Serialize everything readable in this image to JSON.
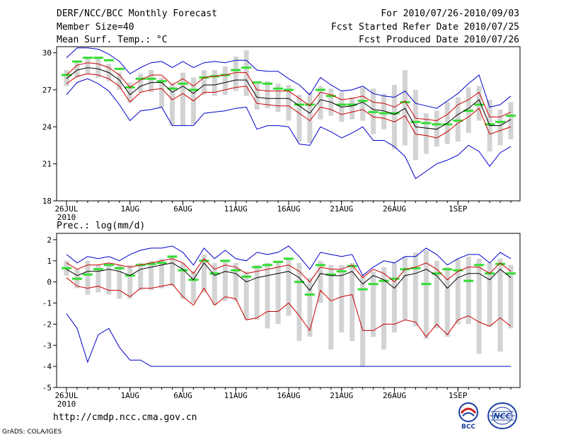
{
  "header": {
    "title": "DERF/NCC/BCC Monthly Forecast",
    "member_size": "Member Size=40",
    "variable": "Mean Surf. Temp.: °C",
    "period": "For 2010/07/26-2010/09/03",
    "start_date": "Fcst Started Refer Date 2010/07/25",
    "produced_date": "Fcst Produced Date 2010/07/26"
  },
  "footer": {
    "url": "http://cmdp.ncc.cma.gov.cn",
    "grads": "GrADS: COLA/IGES",
    "logos": [
      "BCC",
      "NCC"
    ]
  },
  "colors": {
    "ensemble_mean": "#000000",
    "std_envelope": "#cc0000",
    "minmax_envelope": "#0000cc",
    "member_range": "#d3d3d3",
    "climatology": "#33dd33"
  },
  "chart_data": [
    {
      "type": "line",
      "title": "Mean Surf. Temp.: °C",
      "ylabel": "°C",
      "ylim": [
        18,
        30.5
      ],
      "yticks": [
        18,
        21,
        24,
        27,
        30
      ],
      "x_days": 40,
      "xticks": [
        {
          "day": 0,
          "label": "26JUL"
        },
        {
          "day": 6,
          "label": "1AUG"
        },
        {
          "day": 11,
          "label": "6AUG"
        },
        {
          "day": 16,
          "label": "11AUG"
        },
        {
          "day": 21,
          "label": "16AUG"
        },
        {
          "day": 26,
          "label": "21AUG"
        },
        {
          "day": 31,
          "label": "26AUG"
        },
        {
          "day": 37,
          "label": "1SEP"
        }
      ],
      "year_label": "2010",
      "series": [
        {
          "name": "Ensemble mean",
          "values": [
            27.9,
            28.6,
            28.8,
            28.7,
            28.4,
            27.8,
            26.6,
            27.3,
            27.6,
            27.6,
            26.8,
            27.3,
            26.7,
            27.4,
            27.4,
            27.6,
            27.8,
            27.8,
            26.4,
            26.3,
            26.3,
            26.3,
            25.7,
            25.1,
            26.2,
            26.0,
            25.6,
            25.7,
            26.0,
            25.4,
            25.3,
            25.0,
            25.5,
            24.0,
            23.9,
            23.8,
            24.3,
            25.0,
            25.5,
            26.2,
            24.1,
            24.1,
            24.6
          ]
        },
        {
          "name": "Mean + std",
          "values": [
            28.2,
            29.0,
            29.2,
            29.1,
            28.8,
            28.2,
            27.2,
            27.8,
            28.2,
            28.2,
            27.4,
            27.9,
            27.3,
            28.0,
            28.1,
            28.2,
            28.4,
            28.4,
            27.0,
            26.9,
            26.9,
            26.9,
            26.3,
            25.7,
            26.8,
            26.6,
            26.2,
            26.3,
            26.5,
            26.0,
            25.9,
            25.6,
            26.1,
            24.7,
            24.6,
            24.5,
            25.0,
            25.8,
            26.2,
            26.8,
            24.8,
            24.8,
            25.2
          ]
        },
        {
          "name": "Mean - std",
          "values": [
            27.5,
            28.1,
            28.3,
            28.2,
            27.9,
            27.3,
            26.0,
            26.8,
            27.0,
            27.1,
            26.2,
            26.7,
            26.1,
            26.8,
            26.8,
            27.0,
            27.2,
            27.3,
            25.9,
            25.8,
            25.7,
            25.7,
            25.1,
            24.5,
            25.6,
            25.4,
            25.0,
            25.2,
            25.4,
            24.8,
            24.7,
            24.4,
            24.9,
            23.4,
            23.3,
            23.1,
            23.6,
            24.3,
            24.8,
            25.5,
            23.4,
            23.7,
            24.0
          ]
        },
        {
          "name": "Max member",
          "values": [
            29.6,
            30.4,
            30.4,
            30.3,
            29.9,
            29.3,
            28.3,
            28.8,
            29.2,
            29.3,
            28.8,
            29.3,
            28.8,
            29.2,
            29.3,
            29.2,
            29.4,
            29.4,
            28.6,
            28.5,
            28.5,
            27.9,
            27.4,
            26.6,
            28.0,
            27.4,
            26.9,
            27.0,
            27.3,
            26.7,
            26.5,
            26.4,
            26.9,
            25.9,
            25.7,
            25.5,
            26.1,
            26.7,
            27.5,
            28.2,
            25.6,
            25.8,
            26.5
          ]
        },
        {
          "name": "Min member",
          "values": [
            26.6,
            27.6,
            27.9,
            27.5,
            26.9,
            25.8,
            24.5,
            25.3,
            25.4,
            25.6,
            24.1,
            24.1,
            24.1,
            25.1,
            25.2,
            25.3,
            25.5,
            25.6,
            23.8,
            24.1,
            24.1,
            24.0,
            22.6,
            22.5,
            24.0,
            23.6,
            23.1,
            23.5,
            24.0,
            22.9,
            22.9,
            22.4,
            21.6,
            19.8,
            20.4,
            21.0,
            21.3,
            21.7,
            22.5,
            22.0,
            20.8,
            21.9,
            22.4
          ]
        }
      ],
      "member_range": [
        [
          27.3,
          28.6
        ],
        [
          28.0,
          29.3
        ],
        [
          28.3,
          29.6
        ],
        [
          28.0,
          29.6
        ],
        [
          27.7,
          29.1
        ],
        [
          27.0,
          28.4
        ],
        [
          26.0,
          27.6
        ],
        [
          26.8,
          28.3
        ],
        [
          26.8,
          28.6
        ],
        [
          25.6,
          28.0
        ],
        [
          24.1,
          27.5
        ],
        [
          24.1,
          28.4
        ],
        [
          24.2,
          28.0
        ],
        [
          26.6,
          28.6
        ],
        [
          26.5,
          28.6
        ],
        [
          26.6,
          28.9
        ],
        [
          26.9,
          29.7
        ],
        [
          26.5,
          30.2
        ],
        [
          25.4,
          27.5
        ],
        [
          25.5,
          27.7
        ],
        [
          25.2,
          27.5
        ],
        [
          24.5,
          27.4
        ],
        [
          22.8,
          26.6
        ],
        [
          22.7,
          26.8
        ],
        [
          24.6,
          27.3
        ],
        [
          24.9,
          27.1
        ],
        [
          24.4,
          26.8
        ],
        [
          24.6,
          26.4
        ],
        [
          24.5,
          27.2
        ],
        [
          23.4,
          27.1
        ],
        [
          23.8,
          26.7
        ],
        [
          22.2,
          27.4
        ],
        [
          22.5,
          28.6
        ],
        [
          21.3,
          27.0
        ],
        [
          21.8,
          25.1
        ],
        [
          22.4,
          25.3
        ],
        [
          22.6,
          26.0
        ],
        [
          22.8,
          26.4
        ],
        [
          23.5,
          27.2
        ],
        [
          24.5,
          27.3
        ],
        [
          22.0,
          26.2
        ],
        [
          22.5,
          25.4
        ],
        [
          23.0,
          26.0
        ]
      ],
      "climatology": [
        28.2,
        29.3,
        29.6,
        29.6,
        29.4,
        28.7,
        27.2,
        27.9,
        27.9,
        27.7,
        27.1,
        27.5,
        27.0,
        28.0,
        28.1,
        28.2,
        28.6,
        28.8,
        27.6,
        27.5,
        27.1,
        27.0,
        25.8,
        25.8,
        27.0,
        26.5,
        25.8,
        25.8,
        26.1,
        25.2,
        25.1,
        25.1,
        26.0,
        24.4,
        24.3,
        24.2,
        24.2,
        24.5,
        25.3,
        25.8,
        24.2,
        24.4,
        24.9
      ]
    },
    {
      "type": "line",
      "title": "Prec.: log(mm/d)",
      "ylabel": "log(mm/d)",
      "ylim": [
        -5,
        2.3
      ],
      "yticks": [
        -5,
        -4,
        -3,
        -2,
        -1,
        0,
        1,
        2
      ],
      "x_days": 40,
      "xticks": [
        {
          "day": 0,
          "label": "26JUL"
        },
        {
          "day": 6,
          "label": "1AUG"
        },
        {
          "day": 11,
          "label": "6AUG"
        },
        {
          "day": 16,
          "label": "11AUG"
        },
        {
          "day": 21,
          "label": "16AUG"
        },
        {
          "day": 26,
          "label": "21AUG"
        },
        {
          "day": 31,
          "label": "26AUG"
        },
        {
          "day": 37,
          "label": "1SEP"
        }
      ],
      "year_label": "2010",
      "series": [
        {
          "name": "Ensemble mean",
          "values": [
            0.6,
            0.3,
            0.5,
            0.5,
            0.6,
            0.5,
            0.3,
            0.6,
            0.7,
            0.8,
            0.9,
            0.6,
            0.1,
            0.9,
            0.3,
            0.5,
            0.4,
            0.0,
            0.2,
            0.3,
            0.4,
            0.5,
            0.2,
            -0.4,
            0.4,
            0.3,
            0.3,
            0.5,
            -0.1,
            0.3,
            0.1,
            -0.3,
            0.3,
            0.4,
            0.6,
            0.3,
            -0.3,
            0.2,
            0.4,
            0.4,
            0.1,
            0.6,
            0.2
          ]
        },
        {
          "name": "Mean + std",
          "values": [
            0.9,
            0.6,
            0.8,
            0.8,
            0.9,
            0.8,
            0.7,
            0.8,
            0.9,
            1.0,
            1.1,
            0.9,
            0.4,
            1.1,
            0.6,
            0.8,
            0.7,
            0.4,
            0.5,
            0.6,
            0.7,
            0.8,
            0.5,
            0.0,
            0.7,
            0.6,
            0.6,
            0.8,
            0.2,
            0.6,
            0.4,
            0.0,
            0.6,
            0.7,
            0.9,
            0.6,
            0.1,
            0.5,
            0.7,
            0.7,
            0.4,
            0.9,
            0.5
          ]
        },
        {
          "name": "Mean - std",
          "values": [
            0.2,
            -0.2,
            -0.3,
            -0.2,
            -0.4,
            -0.4,
            -0.7,
            -0.3,
            -0.3,
            -0.2,
            -0.1,
            -0.7,
            -1.1,
            -0.3,
            -1.1,
            -0.7,
            -0.8,
            -1.8,
            -1.7,
            -1.4,
            -1.4,
            -1.0,
            -1.6,
            -2.3,
            -0.4,
            -0.9,
            -0.7,
            -0.6,
            -2.3,
            -2.3,
            -2.0,
            -2.0,
            -1.8,
            -1.9,
            -2.6,
            -2.0,
            -2.5,
            -1.8,
            -1.6,
            -1.9,
            -2.1,
            -1.7,
            -2.1
          ]
        },
        {
          "name": "Max member",
          "values": [
            1.3,
            0.9,
            1.2,
            1.1,
            1.2,
            1.0,
            1.3,
            1.5,
            1.6,
            1.6,
            1.7,
            1.4,
            0.8,
            1.6,
            1.1,
            1.5,
            1.1,
            1.0,
            1.4,
            1.3,
            1.4,
            1.7,
            1.2,
            0.6,
            1.4,
            1.3,
            1.2,
            1.3,
            0.3,
            0.7,
            1.0,
            0.9,
            1.2,
            1.2,
            1.6,
            1.3,
            0.8,
            1.1,
            1.3,
            1.3,
            0.9,
            1.4,
            1.1
          ]
        },
        {
          "name": "Min member",
          "values": [
            -1.5,
            -2.2,
            -3.8,
            -2.5,
            -2.2,
            -3.1,
            -3.7,
            -3.7,
            -4.0,
            -4.0,
            -4.0,
            -4.0,
            -4.0,
            -4.0,
            -4.0,
            -4.0,
            -4.0,
            -4.0,
            -4.0,
            -4.0,
            -4.0,
            -4.0,
            -4.0,
            -4.0,
            -4.0,
            -4.0,
            -4.0,
            -4.0,
            -4.0,
            -4.0,
            -4.0,
            -4.0,
            -4.0,
            -4.0,
            -4.0,
            -4.0,
            -4.0,
            -4.0,
            -4.0,
            -4.0,
            -4.0,
            -4.0,
            -4.0
          ]
        }
      ],
      "member_range": [
        [
          0.3,
          1.0
        ],
        [
          -0.3,
          0.6
        ],
        [
          -0.6,
          1.0
        ],
        [
          -0.5,
          0.8
        ],
        [
          -0.6,
          0.9
        ],
        [
          -0.8,
          0.8
        ],
        [
          -0.8,
          0.8
        ],
        [
          -0.4,
          0.9
        ],
        [
          -0.4,
          1.0
        ],
        [
          -0.3,
          1.1
        ],
        [
          -0.2,
          1.2
        ],
        [
          -0.8,
          0.9
        ],
        [
          -1.0,
          0.5
        ],
        [
          -0.5,
          1.3
        ],
        [
          -1.1,
          0.9
        ],
        [
          -0.9,
          1.0
        ],
        [
          -0.9,
          0.9
        ],
        [
          -1.8,
          0.5
        ],
        [
          -1.8,
          0.8
        ],
        [
          -2.2,
          0.9
        ],
        [
          -2.0,
          1.0
        ],
        [
          -1.6,
          1.1
        ],
        [
          -2.8,
          0.9
        ],
        [
          -2.6,
          0.2
        ],
        [
          -1.0,
          1.0
        ],
        [
          -3.2,
          0.8
        ],
        [
          -2.4,
          0.8
        ],
        [
          -2.8,
          0.9
        ],
        [
          -4.0,
          0.3
        ],
        [
          -2.6,
          0.5
        ],
        [
          -3.2,
          0.7
        ],
        [
          -2.4,
          0.9
        ],
        [
          -1.8,
          1.2
        ],
        [
          -2.1,
          1.4
        ],
        [
          -2.7,
          1.5
        ],
        [
          -2.2,
          1.0
        ],
        [
          -2.6,
          0.7
        ],
        [
          -2.0,
          1.1
        ],
        [
          -2.0,
          1.2
        ],
        [
          -3.4,
          1.1
        ],
        [
          -2.1,
          0.9
        ],
        [
          -3.3,
          1.1
        ],
        [
          -2.2,
          0.8
        ]
      ],
      "climatology": [
        0.65,
        0.15,
        0.35,
        0.6,
        0.8,
        0.65,
        0.3,
        0.8,
        0.85,
        0.9,
        1.2,
        0.55,
        0.1,
        1.0,
        0.4,
        1.0,
        0.55,
        0.25,
        0.7,
        0.8,
        0.95,
        1.1,
        0.0,
        -0.6,
        0.8,
        0.35,
        0.5,
        0.75,
        -0.35,
        -0.1,
        0.05,
        0.15,
        0.6,
        0.65,
        -0.1,
        0.4,
        0.6,
        0.55,
        0.05,
        0.8,
        0.4,
        0.85,
        0.4
      ]
    }
  ]
}
